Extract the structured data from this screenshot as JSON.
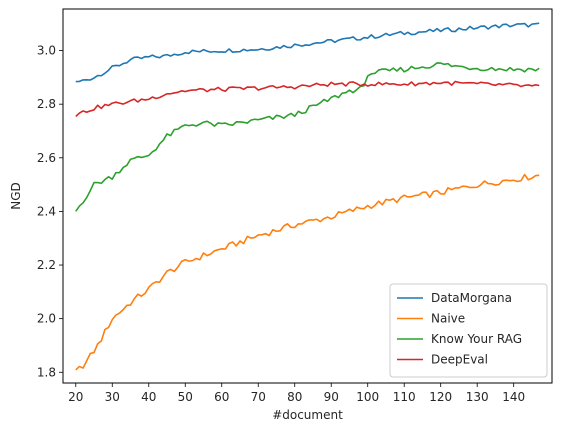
{
  "chart_data": {
    "type": "line",
    "xlabel": "#document",
    "ylabel": "NGD",
    "xlim": [
      16.5,
      150.5
    ],
    "ylim": [
      1.76,
      3.155
    ],
    "xticks": [
      20,
      30,
      40,
      50,
      60,
      70,
      80,
      90,
      100,
      110,
      120,
      130,
      140
    ],
    "yticks": [
      1.8,
      2.0,
      2.2,
      2.4,
      2.6,
      2.8,
      3.0
    ],
    "ytick_labels": [
      "1.8",
      "2.0",
      "2.2",
      "2.4",
      "2.6",
      "2.8",
      "3.0"
    ],
    "grid": false,
    "legend_position": "lower right",
    "x_start": 20,
    "x_end": 147,
    "series": [
      {
        "name": "DataMorgana",
        "color": "#1f77b4",
        "knots": [
          [
            20,
            2.88
          ],
          [
            25,
            2.9
          ],
          [
            30,
            2.935
          ],
          [
            35,
            2.965
          ],
          [
            40,
            2.975
          ],
          [
            45,
            2.98
          ],
          [
            50,
            2.995
          ],
          [
            60,
            3.0
          ],
          [
            70,
            3.005
          ],
          [
            80,
            3.02
          ],
          [
            90,
            3.035
          ],
          [
            100,
            3.05
          ],
          [
            110,
            3.065
          ],
          [
            120,
            3.075
          ],
          [
            130,
            3.085
          ],
          [
            140,
            3.095
          ],
          [
            147,
            3.095
          ]
        ],
        "noise": 0.008
      },
      {
        "name": "Naive",
        "color": "#ff7f0e",
        "knots": [
          [
            20,
            1.8
          ],
          [
            23,
            1.84
          ],
          [
            26,
            1.9
          ],
          [
            30,
            2.0
          ],
          [
            35,
            2.06
          ],
          [
            40,
            2.11
          ],
          [
            45,
            2.17
          ],
          [
            50,
            2.21
          ],
          [
            60,
            2.26
          ],
          [
            70,
            2.31
          ],
          [
            80,
            2.35
          ],
          [
            90,
            2.38
          ],
          [
            100,
            2.42
          ],
          [
            110,
            2.45
          ],
          [
            120,
            2.47
          ],
          [
            130,
            2.5
          ],
          [
            140,
            2.52
          ],
          [
            147,
            2.535
          ]
        ],
        "noise": 0.012
      },
      {
        "name": "Know Your RAG",
        "color": "#2ca02c",
        "knots": [
          [
            20,
            2.4
          ],
          [
            25,
            2.5
          ],
          [
            30,
            2.53
          ],
          [
            35,
            2.59
          ],
          [
            40,
            2.61
          ],
          [
            45,
            2.68
          ],
          [
            50,
            2.72
          ],
          [
            55,
            2.73
          ],
          [
            60,
            2.72
          ],
          [
            65,
            2.73
          ],
          [
            70,
            2.74
          ],
          [
            80,
            2.76
          ],
          [
            85,
            2.79
          ],
          [
            90,
            2.82
          ],
          [
            95,
            2.85
          ],
          [
            99,
            2.86
          ],
          [
            100,
            2.915
          ],
          [
            110,
            2.93
          ],
          [
            115,
            2.94
          ],
          [
            120,
            2.95
          ],
          [
            125,
            2.94
          ],
          [
            130,
            2.935
          ],
          [
            140,
            2.93
          ],
          [
            147,
            2.93
          ]
        ],
        "noise": 0.01
      },
      {
        "name": "DeepEval",
        "color": "#d62728",
        "knots": [
          [
            20,
            2.76
          ],
          [
            25,
            2.785
          ],
          [
            30,
            2.8
          ],
          [
            35,
            2.81
          ],
          [
            40,
            2.82
          ],
          [
            45,
            2.84
          ],
          [
            50,
            2.85
          ],
          [
            60,
            2.855
          ],
          [
            70,
            2.86
          ],
          [
            80,
            2.865
          ],
          [
            90,
            2.875
          ],
          [
            100,
            2.875
          ],
          [
            110,
            2.875
          ],
          [
            120,
            2.88
          ],
          [
            130,
            2.875
          ],
          [
            140,
            2.87
          ],
          [
            147,
            2.865
          ]
        ],
        "noise": 0.008
      }
    ]
  }
}
